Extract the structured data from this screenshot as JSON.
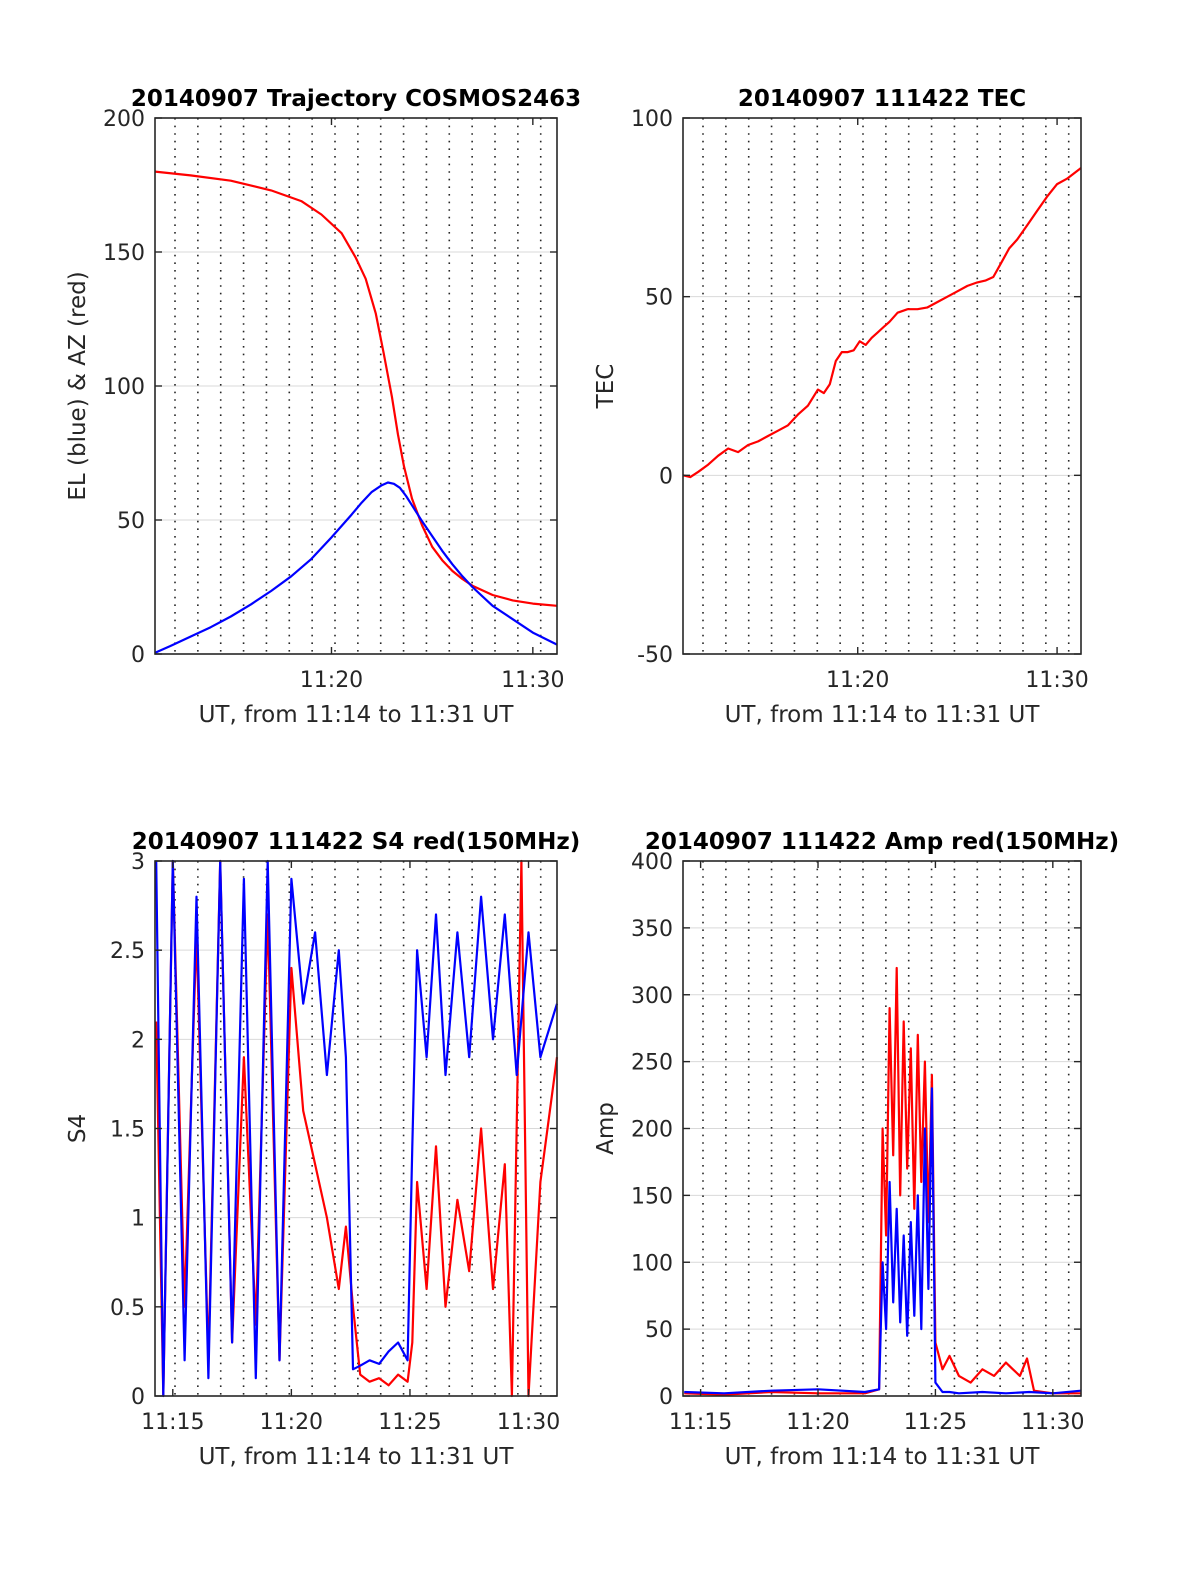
{
  "colors": {
    "az": "#ff0000",
    "el": "#0000ff",
    "red": "#ff0000",
    "blue": "#0000ff",
    "grid": "#262626",
    "axis": "#262626"
  },
  "chart_data": [
    {
      "type": "line",
      "title": "20140907 Trajectory COSMOS2463",
      "xlabel": "UT, from 11:14 to 11:31 UT",
      "ylabel": "EL (blue) & AZ (red)",
      "xlim": [
        11.235,
        31.2
      ],
      "ylim": [
        0,
        200
      ],
      "x_ticks": [
        {
          "v": 20,
          "label": "11:20"
        },
        {
          "v": 30,
          "label": "11:30"
        }
      ],
      "y_ticks": [
        {
          "v": 0,
          "label": "0"
        },
        {
          "v": 50,
          "label": "50"
        },
        {
          "v": 100,
          "label": "100"
        },
        {
          "v": 150,
          "label": "150"
        },
        {
          "v": 200,
          "label": "200"
        }
      ],
      "grid": true,
      "x_unit": "minutes after 11:00 UT",
      "series": [
        {
          "color": "red",
          "x": [
            11.24,
            13,
            15,
            17,
            18.5,
            19.5,
            20.5,
            21.2,
            21.7,
            22.2,
            22.6,
            23,
            23.3,
            23.6,
            24,
            24.5,
            25,
            25.5,
            26,
            26.5,
            27,
            28,
            29,
            30,
            31.2
          ],
          "y": [
            180,
            178.6,
            176.6,
            173,
            169,
            164,
            157,
            148,
            140,
            127,
            112,
            96,
            82,
            70,
            58,
            48,
            40,
            35,
            31,
            28,
            25.5,
            22,
            20,
            18.8,
            18
          ]
        },
        {
          "color": "blue",
          "x": [
            11.24,
            12,
            13,
            14,
            15,
            16,
            17,
            18,
            19,
            20,
            21,
            21.5,
            22,
            22.5,
            22.8,
            23.1,
            23.4,
            23.7,
            24,
            24.5,
            25,
            25.5,
            26,
            26.5,
            27,
            27.5,
            28,
            29,
            30,
            31.2
          ],
          "y": [
            0.5,
            3,
            6.5,
            10,
            14,
            18.5,
            23.5,
            29,
            35.5,
            43.5,
            52,
            56.5,
            60.5,
            63,
            64,
            63.5,
            62,
            59,
            55.5,
            49.5,
            44,
            38.5,
            33.5,
            29,
            25,
            21.5,
            18,
            13,
            8,
            3.5
          ]
        }
      ]
    },
    {
      "type": "line",
      "title": "20140907 111422 TEC",
      "xlabel": "UT, from 11:14 to 11:31 UT",
      "ylabel": "TEC",
      "xlim": [
        11.235,
        31.2
      ],
      "ylim": [
        -50,
        100
      ],
      "x_ticks": [
        {
          "v": 20,
          "label": "11:20"
        },
        {
          "v": 30,
          "label": "11:30"
        }
      ],
      "y_ticks": [
        {
          "v": -50,
          "label": "-50"
        },
        {
          "v": 0,
          "label": "0"
        },
        {
          "v": 50,
          "label": "50"
        },
        {
          "v": 100,
          "label": "100"
        }
      ],
      "grid": true,
      "x_unit": "minutes after 11:00 UT",
      "series": [
        {
          "color": "red",
          "x": [
            11.24,
            11.6,
            12,
            12.5,
            13,
            13.5,
            14,
            14.5,
            15,
            15.5,
            16,
            16.5,
            17,
            17.5,
            18,
            18.3,
            18.6,
            18.9,
            19.2,
            19.5,
            19.8,
            20.1,
            20.4,
            20.7,
            21,
            21.3,
            21.6,
            22,
            22.5,
            23,
            23.5,
            24,
            24.5,
            25,
            25.5,
            26,
            26.4,
            26.8,
            27.2,
            27.6,
            28,
            28.5,
            29,
            29.5,
            30,
            30.5,
            31.2
          ],
          "y": [
            0,
            -0.5,
            1,
            3,
            5.5,
            7.5,
            6.5,
            8.5,
            9.5,
            11,
            12.5,
            14,
            17,
            19.5,
            24,
            23,
            25.5,
            32,
            34.5,
            34.5,
            35,
            37.5,
            36.5,
            38.5,
            40,
            41.5,
            43,
            45.5,
            46.5,
            46.5,
            47,
            48.5,
            50,
            51.5,
            53,
            54,
            54.5,
            55.5,
            59.5,
            63.5,
            66,
            70,
            74,
            78,
            81.5,
            83,
            86
          ]
        }
      ]
    },
    {
      "type": "line",
      "title": "20140907 111422 S4 red(150MHz)",
      "xlabel": "UT, from 11:14 to 11:31 UT",
      "ylabel": "S4",
      "xlim": [
        14.25,
        31.2
      ],
      "ylim": [
        0,
        3
      ],
      "x_ticks": [
        {
          "v": 15,
          "label": "11:15"
        },
        {
          "v": 20,
          "label": "11:20"
        },
        {
          "v": 25,
          "label": "11:25"
        },
        {
          "v": 30,
          "label": "11:30"
        }
      ],
      "y_ticks": [
        {
          "v": 0,
          "label": "0"
        },
        {
          "v": 0.5,
          "label": "0.5"
        },
        {
          "v": 1,
          "label": "1"
        },
        {
          "v": 1.5,
          "label": "1.5"
        },
        {
          "v": 2,
          "label": "2"
        },
        {
          "v": 2.5,
          "label": "2.5"
        },
        {
          "v": 3,
          "label": "3"
        }
      ],
      "grid": true,
      "x_unit": "minutes after 11:00 UT",
      "series": [
        {
          "color": "red",
          "x": [
            14.3,
            14.6,
            15,
            15.5,
            16,
            16.5,
            17,
            17.5,
            18,
            18.5,
            19,
            19.5,
            20,
            20.5,
            21,
            21.5,
            22,
            22.3,
            22.6,
            22.9,
            23.3,
            23.7,
            24.1,
            24.5,
            24.9,
            25.1,
            25.3,
            25.7,
            26.1,
            26.5,
            27,
            27.5,
            28,
            28.5,
            29,
            29.3,
            29.7,
            30,
            30.5,
            31.2
          ],
          "y": [
            2.1,
            0,
            3,
            0.5,
            2.6,
            0.2,
            3,
            0.3,
            1.9,
            0.4,
            2.7,
            0.2,
            2.4,
            1.6,
            1.3,
            1.0,
            0.6,
            0.95,
            0.5,
            0.12,
            0.08,
            0.1,
            0.06,
            0.12,
            0.08,
            0.3,
            1.2,
            0.6,
            1.4,
            0.5,
            1.1,
            0.7,
            1.5,
            0.6,
            1.3,
            0,
            3,
            0,
            1.2,
            1.9
          ]
        },
        {
          "color": "blue",
          "x": [
            14.3,
            14.6,
            15,
            15.5,
            16,
            16.5,
            17,
            17.5,
            18,
            18.5,
            19,
            19.5,
            20,
            20.5,
            21,
            21.5,
            22,
            22.3,
            22.6,
            22.9,
            23.3,
            23.7,
            24.1,
            24.5,
            24.9,
            25.1,
            25.3,
            25.7,
            26.1,
            26.5,
            27,
            27.5,
            28,
            28.5,
            29,
            29.5,
            30,
            30.5,
            31.2
          ],
          "y": [
            3,
            0,
            3,
            0.2,
            2.8,
            0.1,
            3,
            0.3,
            2.9,
            0.1,
            3,
            0.2,
            2.9,
            2.2,
            2.6,
            1.8,
            2.5,
            1.9,
            0.15,
            0.17,
            0.2,
            0.18,
            0.25,
            0.3,
            0.2,
            1.4,
            2.5,
            1.9,
            2.7,
            1.8,
            2.6,
            1.9,
            2.8,
            2.0,
            2.7,
            1.8,
            2.6,
            1.9,
            2.2
          ]
        }
      ]
    },
    {
      "type": "line",
      "title": "20140907 111422 Amp red(150MHz)",
      "xlabel": "UT, from 11:14 to 11:31 UT",
      "ylabel": "Amp",
      "xlim": [
        14.25,
        31.2
      ],
      "ylim": [
        0,
        400
      ],
      "x_ticks": [
        {
          "v": 15,
          "label": "11:15"
        },
        {
          "v": 20,
          "label": "11:20"
        },
        {
          "v": 25,
          "label": "11:25"
        },
        {
          "v": 30,
          "label": "11:30"
        }
      ],
      "y_ticks": [
        {
          "v": 0,
          "label": "0"
        },
        {
          "v": 50,
          "label": "50"
        },
        {
          "v": 100,
          "label": "100"
        },
        {
          "v": 150,
          "label": "150"
        },
        {
          "v": 200,
          "label": "200"
        },
        {
          "v": 250,
          "label": "250"
        },
        {
          "v": 300,
          "label": "300"
        },
        {
          "v": 350,
          "label": "350"
        },
        {
          "v": 400,
          "label": "400"
        }
      ],
      "grid": true,
      "x_unit": "minutes after 11:00 UT",
      "series": [
        {
          "color": "red",
          "x": [
            14.3,
            16,
            18,
            20,
            22,
            22.6,
            22.75,
            22.9,
            23.05,
            23.2,
            23.35,
            23.5,
            23.65,
            23.8,
            23.95,
            24.1,
            24.25,
            24.4,
            24.55,
            24.7,
            24.85,
            25,
            25.3,
            25.6,
            26,
            26.5,
            27,
            27.5,
            28,
            28.3,
            28.6,
            28.9,
            29.2,
            30,
            31.2
          ],
          "y": [
            2,
            1,
            3,
            2,
            2,
            5,
            200,
            120,
            290,
            180,
            320,
            150,
            280,
            170,
            260,
            140,
            270,
            160,
            250,
            130,
            240,
            40,
            20,
            30,
            15,
            10,
            20,
            15,
            25,
            20,
            15,
            28,
            4,
            2,
            2
          ]
        },
        {
          "color": "blue",
          "x": [
            14.3,
            16,
            18,
            20,
            22,
            22.6,
            22.75,
            22.9,
            23.05,
            23.2,
            23.35,
            23.5,
            23.65,
            23.8,
            23.95,
            24.1,
            24.25,
            24.4,
            24.55,
            24.7,
            24.85,
            25,
            25.3,
            25.6,
            26,
            27,
            28,
            29,
            30,
            31.2
          ],
          "y": [
            3,
            2,
            4,
            5,
            3,
            5,
            100,
            50,
            160,
            70,
            140,
            55,
            120,
            45,
            130,
            60,
            150,
            50,
            200,
            80,
            230,
            10,
            3,
            3,
            2,
            3,
            2,
            3,
            2,
            4
          ]
        }
      ]
    }
  ]
}
